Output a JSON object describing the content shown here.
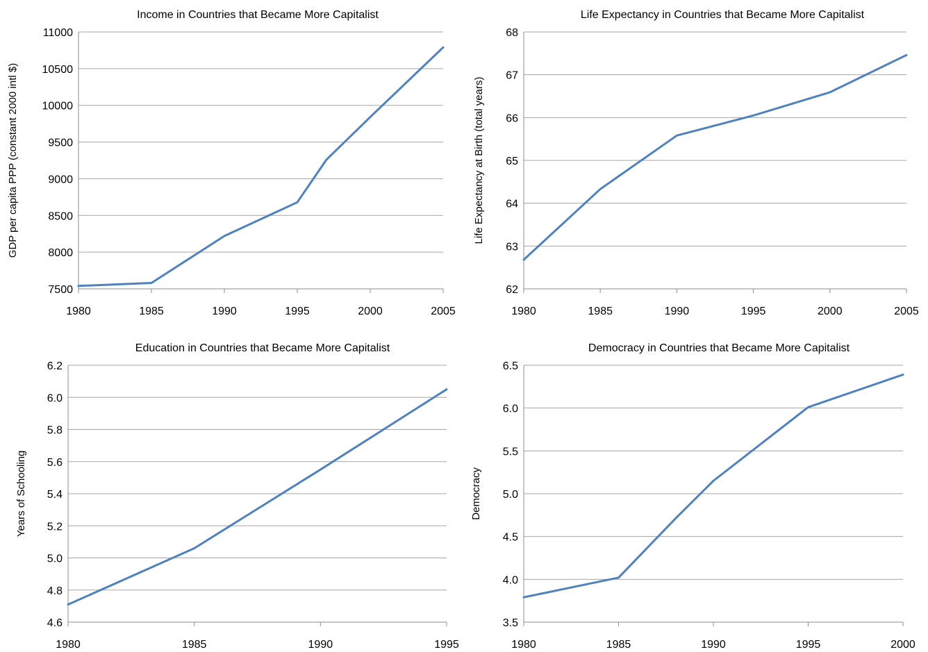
{
  "chart_data": [
    {
      "type": "line",
      "title": "Income in Countries that Became More Capitalist",
      "xlabel": "",
      "ylabel": "GDP per capita PPP (constant 2000 intl $)",
      "xlim": [
        1980,
        2005
      ],
      "ylim": [
        7500,
        11000
      ],
      "xticks": [
        1980,
        1985,
        1990,
        1995,
        2000,
        2005
      ],
      "yticks": [
        7500,
        8000,
        8500,
        9000,
        9500,
        10000,
        10500,
        11000
      ],
      "ytick_labels": [
        "7500",
        "8000",
        "8500",
        "9000",
        "9500",
        "10000",
        "10500",
        "11000"
      ],
      "grid": true,
      "series": [
        {
          "x": [
            1980,
            1985,
            1990,
            1995,
            1997,
            2000,
            2005
          ],
          "values": [
            7540,
            7580,
            8220,
            8680,
            9260,
            9840,
            10790
          ]
        }
      ]
    },
    {
      "type": "line",
      "title": "Life Expectancy in Countries that Became More Capitalist",
      "xlabel": "",
      "ylabel": "Life Expectancy at Birth (total years)",
      "xlim": [
        1980,
        2005
      ],
      "ylim": [
        62,
        68
      ],
      "xticks": [
        1980,
        1985,
        1990,
        1995,
        2000,
        2005
      ],
      "yticks": [
        62,
        63,
        64,
        65,
        66,
        67,
        68
      ],
      "ytick_labels": [
        "62",
        "63",
        "64",
        "65",
        "66",
        "67",
        "68"
      ],
      "grid": true,
      "series": [
        {
          "x": [
            1980,
            1985,
            1990,
            1995,
            2000,
            2005
          ],
          "values": [
            62.68,
            64.33,
            65.58,
            66.05,
            66.59,
            67.46
          ]
        }
      ]
    },
    {
      "type": "line",
      "title": "Education in Countries that Became More Capitalist",
      "xlabel": "",
      "ylabel": "Years of Schooling",
      "xlim": [
        1980,
        1995
      ],
      "ylim": [
        4.6,
        6.2
      ],
      "xticks": [
        1980,
        1985,
        1990,
        1995
      ],
      "yticks": [
        4.6,
        4.8,
        5.0,
        5.2,
        5.4,
        5.6,
        5.8,
        6.0,
        6.2
      ],
      "ytick_labels": [
        "4.6",
        "4.8",
        "5.0",
        "5.2",
        "5.4",
        "5.6",
        "5.8",
        "6.0",
        "6.2"
      ],
      "grid": true,
      "series": [
        {
          "x": [
            1980,
            1985,
            1990,
            1995
          ],
          "values": [
            4.71,
            5.06,
            5.55,
            6.05
          ]
        }
      ]
    },
    {
      "type": "line",
      "title": "Democracy in Countries that Became More Capitalist",
      "xlabel": "",
      "ylabel": "Democracy",
      "xlim": [
        1980,
        2000
      ],
      "ylim": [
        3.5,
        6.5
      ],
      "xticks": [
        1980,
        1985,
        1990,
        1995,
        2000
      ],
      "yticks": [
        3.5,
        4.0,
        4.5,
        5.0,
        5.5,
        6.0,
        6.5
      ],
      "ytick_labels": [
        "3.5",
        "4.0",
        "4.5",
        "5.0",
        "5.5",
        "6.0",
        "6.5"
      ],
      "grid": true,
      "series": [
        {
          "x": [
            1980,
            1985,
            1988,
            1990,
            1995,
            2000
          ],
          "values": [
            3.79,
            4.02,
            4.71,
            5.15,
            6.01,
            6.39
          ]
        }
      ]
    }
  ],
  "colors": {
    "series_line": "#4f81bd",
    "gridline": "#a6a6a6"
  }
}
